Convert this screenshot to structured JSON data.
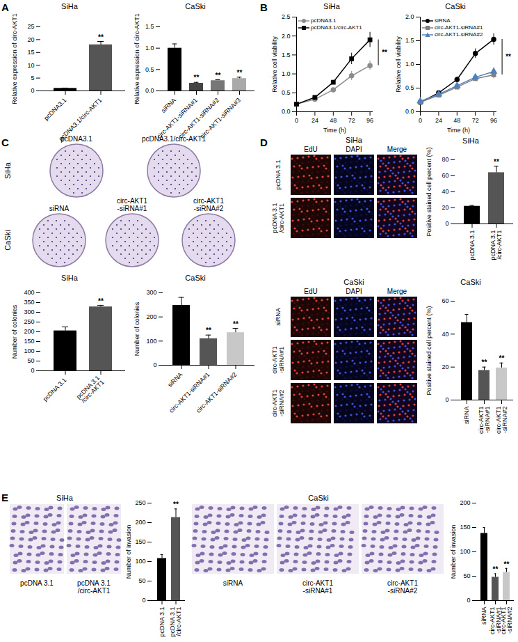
{
  "figure": {
    "panel_labels": [
      "A",
      "B",
      "C",
      "D",
      "E"
    ]
  },
  "chart_data": [
    {
      "type": "bar",
      "title": "SiHa",
      "categories": [
        "pcDNA3.1",
        "pcDNA3.1/circ-AKT1"
      ],
      "values": [
        1,
        18
      ],
      "errors": [
        0.1,
        1.3
      ],
      "colors": [
        "#000000",
        "#555555"
      ],
      "annotations": [
        null,
        "**"
      ],
      "y_label": "Relative expression of circ-AKT1",
      "ylim": [
        0,
        25
      ],
      "yticks": [
        0,
        5,
        10,
        15,
        20,
        25
      ]
    },
    {
      "type": "bar",
      "title": "CaSki",
      "categories": [
        "siRNA",
        "circ-AKT1-siRNA#1",
        "circ-AKT1-siRNA#2",
        "circ-AKT1-siRNA#3"
      ],
      "values": [
        1.0,
        0.18,
        0.24,
        0.29
      ],
      "errors": [
        0.1,
        0.02,
        0.02,
        0.03
      ],
      "colors": [
        "#000000",
        "#444444",
        "#777777",
        "#aaaaaa"
      ],
      "annotations": [
        null,
        "**",
        "**",
        "**"
      ],
      "y_label": "Relative expression of circ-AKT1",
      "ylim": [
        0,
        1.5
      ],
      "yticks": [
        {
          "value": 0,
          "label": "0.0"
        },
        {
          "value": 0.5,
          "label": "0.5"
        },
        {
          "value": 1,
          "label": "1.0"
        },
        {
          "value": 1.5,
          "label": "1.5"
        }
      ]
    },
    {
      "type": "line",
      "title": "SiHa",
      "x": [
        0,
        24,
        48,
        72,
        96
      ],
      "series": [
        {
          "name": "pcDNA3.1",
          "color": "#8c8c8c",
          "marker": "circle",
          "values": [
            0.2,
            0.33,
            0.58,
            0.95,
            1.22
          ],
          "errors": [
            0.02,
            0.03,
            0.04,
            0.12,
            0.12
          ]
        },
        {
          "name": "pcDNA3.1/circ-AKT1",
          "color": "#000000",
          "marker": "square",
          "values": [
            0.2,
            0.38,
            0.78,
            1.4,
            1.9
          ],
          "errors": [
            0.02,
            0.03,
            0.05,
            0.15,
            0.2
          ]
        }
      ],
      "x_label": "Time (h)",
      "y_label": "Relative cell viability",
      "xlim": [
        0,
        100
      ],
      "xticks": [
        0,
        24,
        48,
        72,
        96
      ],
      "ylim": [
        0,
        2.5
      ],
      "yticks": [
        {
          "value": 0,
          "label": "0.0"
        },
        {
          "value": 0.5,
          "label": "0.5"
        },
        {
          "value": 1,
          "label": "1.0"
        },
        {
          "value": 1.5,
          "label": "1.5"
        },
        {
          "value": 2,
          "label": "2.0"
        },
        {
          "value": 2.5,
          "label": "2.5"
        }
      ],
      "legend": "top-left",
      "annotations": [
        {
          "text": "**",
          "x": 96,
          "series": [
            "pcDNA3.1",
            "pcDNA3.1/circ-AKT1"
          ]
        }
      ]
    },
    {
      "type": "line",
      "title": "CaSki",
      "x": [
        0,
        24,
        48,
        72,
        96
      ],
      "series": [
        {
          "name": "siRNA",
          "color": "#000000",
          "marker": "circle",
          "values": [
            0.2,
            0.4,
            0.68,
            1.23,
            1.53
          ],
          "errors": [
            0.02,
            0.04,
            0.06,
            0.1,
            0.12
          ]
        },
        {
          "name": "circ-AKT1-siRNA#1",
          "color": "#7f7f7f",
          "marker": "square",
          "values": [
            0.2,
            0.35,
            0.52,
            0.7,
            0.78
          ],
          "errors": [
            0.02,
            0.03,
            0.04,
            0.06,
            0.08
          ]
        },
        {
          "name": "circ-AKT1-siRNA#2",
          "color": "#4f81bd",
          "marker": "triangle",
          "values": [
            0.22,
            0.37,
            0.55,
            0.73,
            0.85
          ],
          "errors": [
            0.02,
            0.03,
            0.04,
            0.06,
            0.08
          ]
        }
      ],
      "x_label": "Time (h)",
      "y_label": "Relative cell viability",
      "xlim": [
        0,
        100
      ],
      "xticks": [
        0,
        24,
        48,
        72,
        96
      ],
      "ylim": [
        0,
        2
      ],
      "yticks": [
        {
          "value": 0,
          "label": "0.0"
        },
        {
          "value": 0.5,
          "label": "0.5"
        },
        {
          "value": 1,
          "label": "1.0"
        },
        {
          "value": 1.5,
          "label": "1.5"
        },
        {
          "value": 2,
          "label": "2.0"
        }
      ],
      "legend": "top-left",
      "annotations": [
        {
          "text": "**",
          "x": 96,
          "series": [
            "siRNA",
            "circ-AKT1-siRNA#1"
          ]
        }
      ]
    },
    {
      "type": "bar",
      "title": "SiHa",
      "categories": [
        "pcDNA 3.1",
        "pcDNA 3.1\n/circ-AKT1"
      ],
      "values": [
        205,
        328
      ],
      "errors": [
        20,
        8
      ],
      "colors": [
        "#000000",
        "#555555"
      ],
      "annotations": [
        null,
        "**"
      ],
      "y_label": "Number of colonies",
      "ylim": [
        0,
        400
      ],
      "yticks": [
        0,
        50,
        100,
        150,
        200,
        250,
        300,
        350,
        400
      ]
    },
    {
      "type": "bar",
      "title": "CaSki",
      "categories": [
        "siRNA",
        "circ-AKT1-siRNA#1",
        "circ-AKT1-siRNA#2"
      ],
      "values": [
        248,
        110,
        135
      ],
      "errors": [
        33,
        15,
        18
      ],
      "colors": [
        "#000000",
        "#555555",
        "#c8c8c8"
      ],
      "annotations": [
        null,
        "**",
        "**"
      ],
      "y_label": "Number of colonies",
      "ylim": [
        0,
        300
      ],
      "yticks": [
        0,
        100,
        200,
        300
      ]
    },
    {
      "type": "bar",
      "title": "SiHa",
      "categories": [
        "pcDNA 3.1",
        "pcDNA 3.1\n/circ-AKT1"
      ],
      "values": [
        22,
        64
      ],
      "errors": [
        1,
        8
      ],
      "colors": [
        "#000000",
        "#555555"
      ],
      "annotations": [
        null,
        "**"
      ],
      "y_label": "Positive stained cell percent (%)",
      "ylim": [
        0,
        80
      ],
      "yticks": [
        0,
        20,
        40,
        60,
        80
      ]
    },
    {
      "type": "bar",
      "title": "CaSki",
      "categories": [
        "siRNA",
        "circ-AKT1\n-siRNA#1",
        "circ-AKT1\n-siRNA#2"
      ],
      "values": [
        47,
        18,
        19.5
      ],
      "errors": [
        5,
        2,
        3
      ],
      "colors": [
        "#000000",
        "#555555",
        "#c8c8c8"
      ],
      "annotations": [
        null,
        "**",
        "**"
      ],
      "y_label": "Positive stained cell percent (%)",
      "ylim": [
        0,
        60
      ],
      "yticks": [
        0,
        20,
        40,
        60
      ]
    },
    {
      "type": "bar",
      "categories": [
        "pcDNA 3.1",
        "pcDNA 3.1\n/circ-AKT1"
      ],
      "values": [
        108,
        213
      ],
      "errors": [
        10,
        22
      ],
      "colors": [
        "#000000",
        "#555555"
      ],
      "annotations": [
        null,
        "**"
      ],
      "y_label": "Number of invasion",
      "ylim": [
        0,
        250
      ],
      "yticks": [
        0,
        50,
        100,
        150,
        200,
        250
      ]
    },
    {
      "type": "bar",
      "categories": [
        "siRNA",
        "circ-AKT1\n-siRNA#1",
        "circ-AKT1\n-siRNA#2"
      ],
      "values": [
        138,
        48,
        58
      ],
      "errors": [
        12,
        7,
        8
      ],
      "colors": [
        "#000000",
        "#555555",
        "#c8c8c8"
      ],
      "annotations": [
        null,
        "**",
        "**"
      ],
      "y_label": "Number of invasion",
      "ylim": [
        0,
        200
      ],
      "yticks": [
        0,
        50,
        100,
        150,
        200
      ]
    }
  ],
  "image_panels": [
    {
      "title": "SiHa",
      "columns": [
        "pcDNA3.1",
        "pcDNA3.1/circ-AKT1"
      ]
    },
    {
      "title": "CaSki",
      "columns": [
        "siRNA",
        "circ-AKT1\n-siRNA#1",
        "circ-AKT1\n-siRNA#2"
      ]
    },
    {
      "title": "SiHa",
      "columns": [
        "EdU",
        "DAPI",
        "Merge"
      ],
      "rows": [
        "pcDNA 3.1",
        "pcDNA 3.1\n/circ-AKT1"
      ]
    },
    {
      "title": "CaSki",
      "columns": [
        "EdU",
        "DAPI",
        "Merge"
      ],
      "rows": [
        "siRNA",
        "circ-AKT1\n-siRNA#1",
        "circ-AKT1\n-siRNA#2"
      ]
    },
    {
      "title": "SiHa",
      "columns": [
        "pcDNA 3.1",
        "pcDNA 3.1\n/circ-AKT1"
      ]
    },
    {
      "title": "CaSki",
      "columns": [
        "siRNA",
        "circ-AKT1\n-siRNA#1",
        "circ-AKT1\n-siRNA#2"
      ]
    }
  ]
}
